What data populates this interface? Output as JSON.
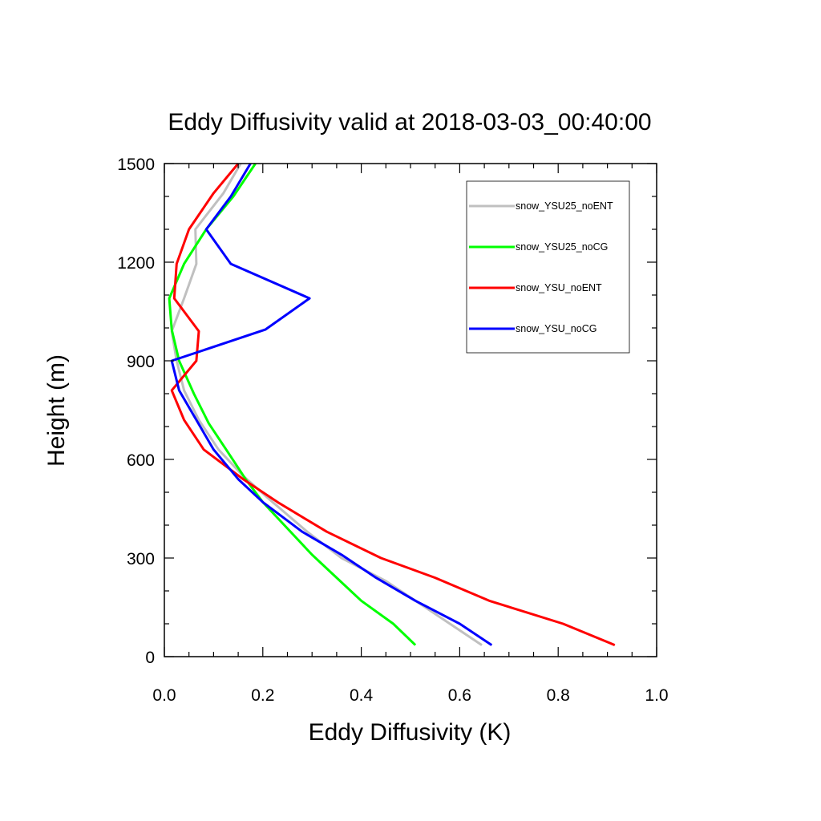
{
  "chart_data": {
    "type": "line",
    "title": "Eddy Diffusivity valid at 2018-03-03_00:40:00",
    "xlabel": "Eddy Diffusivity (K)",
    "ylabel": "Height (m)",
    "xlim": [
      0.0,
      1.0
    ],
    "ylim": [
      0,
      1500
    ],
    "xticks": [
      "0.0",
      "0.2",
      "0.4",
      "0.6",
      "0.8",
      "1.0"
    ],
    "yticks": [
      "0",
      "300",
      "600",
      "900",
      "1200",
      "1500"
    ],
    "grid": false,
    "legend_position": "top-right",
    "series": [
      {
        "name": "snow_YSU25_noENT",
        "color": "#c0c0c0",
        "points": [
          [
            0.645,
            35
          ],
          [
            0.59,
            90
          ],
          [
            0.52,
            160
          ],
          [
            0.45,
            230
          ],
          [
            0.36,
            300
          ],
          [
            0.29,
            380
          ],
          [
            0.22,
            470
          ],
          [
            0.16,
            550
          ],
          [
            0.11,
            630
          ],
          [
            0.07,
            720
          ],
          [
            0.04,
            810
          ],
          [
            0.025,
            900
          ],
          [
            0.015,
            990
          ],
          [
            0.04,
            1090
          ],
          [
            0.065,
            1195
          ],
          [
            0.063,
            1300
          ],
          [
            0.12,
            1410
          ],
          [
            0.155,
            1500
          ]
        ]
      },
      {
        "name": "snow_YSU25_noCG",
        "color": "#00ff00",
        "points": [
          [
            0.51,
            35
          ],
          [
            0.465,
            100
          ],
          [
            0.4,
            170
          ],
          [
            0.35,
            240
          ],
          [
            0.3,
            310
          ],
          [
            0.25,
            390
          ],
          [
            0.2,
            470
          ],
          [
            0.165,
            540
          ],
          [
            0.13,
            620
          ],
          [
            0.09,
            710
          ],
          [
            0.06,
            800
          ],
          [
            0.03,
            900
          ],
          [
            0.015,
            995
          ],
          [
            0.01,
            1090
          ],
          [
            0.04,
            1195
          ],
          [
            0.085,
            1300
          ],
          [
            0.14,
            1400
          ],
          [
            0.185,
            1500
          ]
        ]
      },
      {
        "name": "snow_YSU_noENT",
        "color": "#ff0000",
        "points": [
          [
            0.915,
            35
          ],
          [
            0.81,
            100
          ],
          [
            0.66,
            170
          ],
          [
            0.55,
            240
          ],
          [
            0.44,
            300
          ],
          [
            0.33,
            380
          ],
          [
            0.23,
            470
          ],
          [
            0.16,
            540
          ],
          [
            0.08,
            630
          ],
          [
            0.04,
            720
          ],
          [
            0.015,
            810
          ],
          [
            0.065,
            900
          ],
          [
            0.07,
            990
          ],
          [
            0.02,
            1090
          ],
          [
            0.025,
            1195
          ],
          [
            0.05,
            1300
          ],
          [
            0.1,
            1410
          ],
          [
            0.15,
            1500
          ]
        ]
      },
      {
        "name": "snow_YSU_noCG",
        "color": "#0000ff",
        "points": [
          [
            0.665,
            35
          ],
          [
            0.6,
            100
          ],
          [
            0.51,
            170
          ],
          [
            0.43,
            240
          ],
          [
            0.36,
            310
          ],
          [
            0.28,
            380
          ],
          [
            0.2,
            470
          ],
          [
            0.15,
            540
          ],
          [
            0.1,
            630
          ],
          [
            0.065,
            720
          ],
          [
            0.03,
            810
          ],
          [
            0.015,
            900
          ],
          [
            0.205,
            995
          ],
          [
            0.295,
            1090
          ],
          [
            0.135,
            1195
          ],
          [
            0.085,
            1300
          ],
          [
            0.135,
            1400
          ],
          [
            0.175,
            1500
          ]
        ]
      }
    ]
  }
}
